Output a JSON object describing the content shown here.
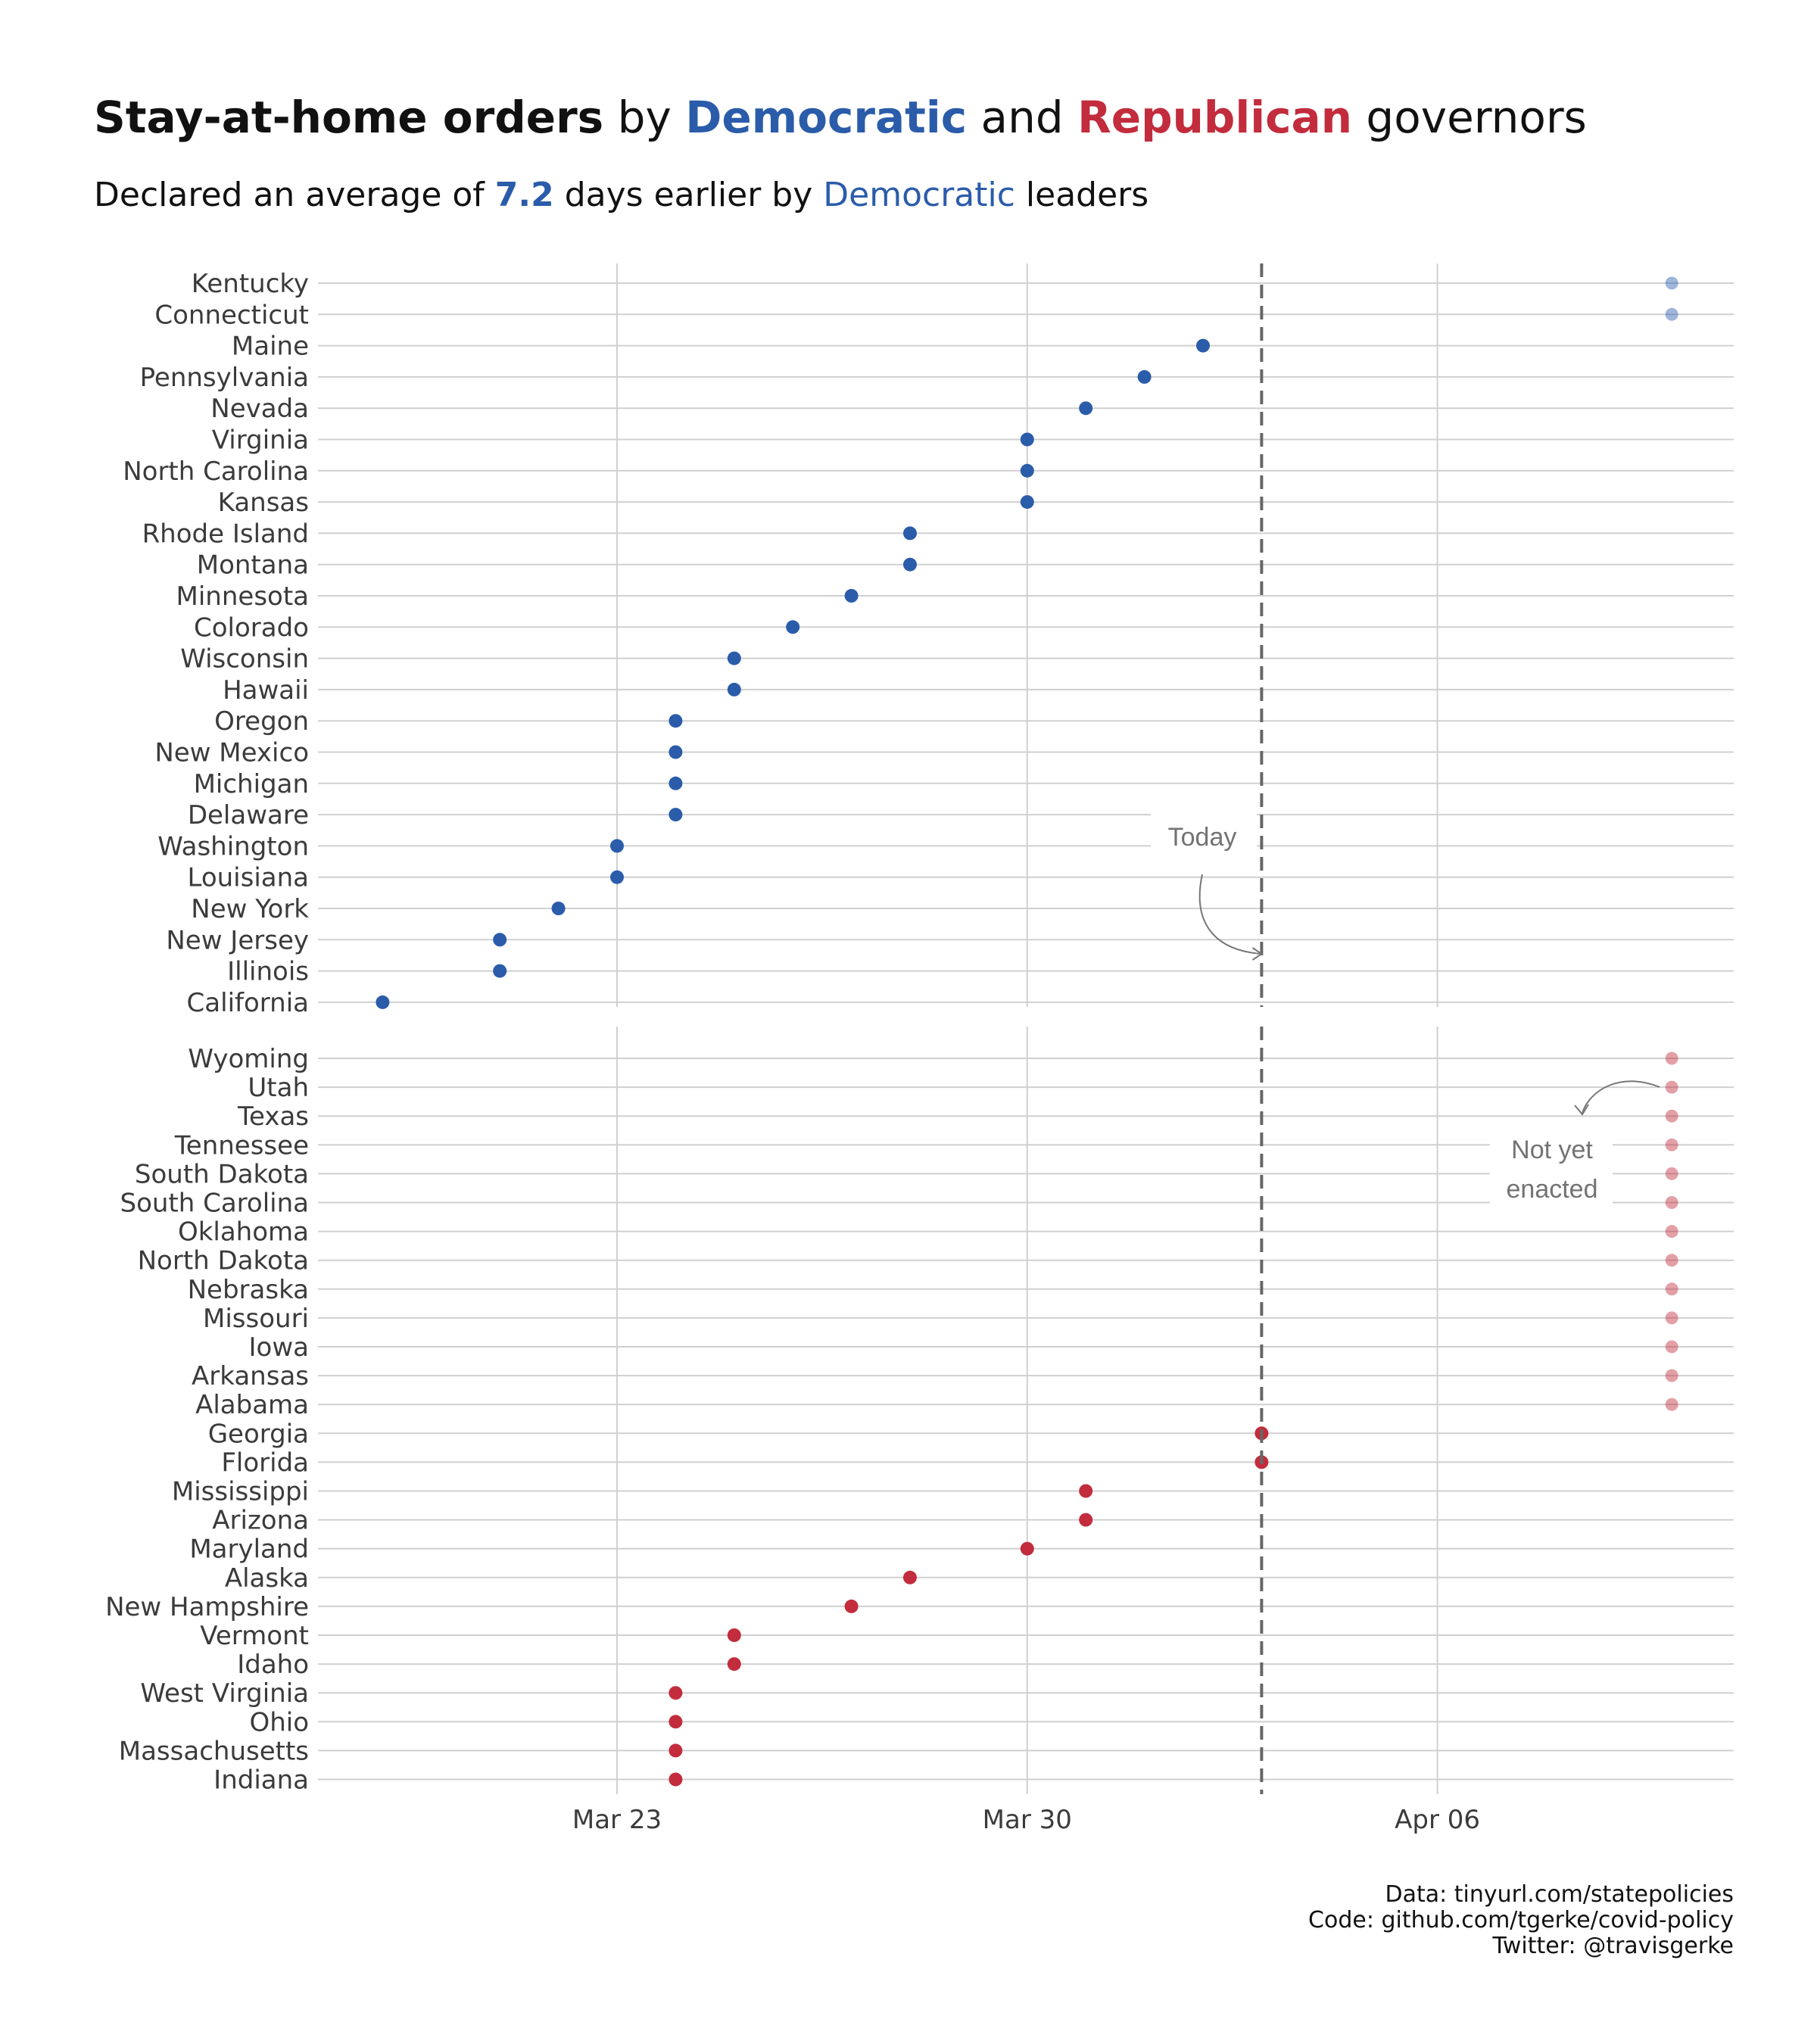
{
  "title_parts": {
    "bold_lead": "Stay-at-home orders",
    "by": " by ",
    "dem": "Democratic",
    "and": " and ",
    "rep": "Republican",
    "tail": " governors"
  },
  "subtitle_parts": {
    "lead": "Declared an average of ",
    "num": "7.2",
    "mid": " days earlier by ",
    "dem": "Democratic",
    "tail": " leaders"
  },
  "colors": {
    "dem": "#2a5caa",
    "rep": "#c22c3c",
    "grid": "#d0d0d0",
    "today_line": "#666666",
    "text": "#3b3b3b"
  },
  "chart_data": {
    "type": "scatter",
    "x_unit": "date (2020)",
    "x_ticks": [
      {
        "label": "Mar 23",
        "day": 23
      },
      {
        "label": "Mar 30",
        "day": 30
      },
      {
        "label": "Apr 06",
        "day": 37
      }
    ],
    "xlim_day": [
      17.9,
      42.2
    ],
    "today_day": 34,
    "not_yet_enacted_day": 41,
    "panels": [
      {
        "party": "Democratic",
        "color_key": "dem",
        "states": [
          {
            "state": "Kentucky",
            "day": null
          },
          {
            "state": "Connecticut",
            "day": null
          },
          {
            "state": "Maine",
            "day": 33
          },
          {
            "state": "Pennsylvania",
            "day": 32
          },
          {
            "state": "Nevada",
            "day": 31
          },
          {
            "state": "Virginia",
            "day": 30
          },
          {
            "state": "North Carolina",
            "day": 30
          },
          {
            "state": "Kansas",
            "day": 30
          },
          {
            "state": "Rhode Island",
            "day": 28
          },
          {
            "state": "Montana",
            "day": 28
          },
          {
            "state": "Minnesota",
            "day": 27
          },
          {
            "state": "Colorado",
            "day": 26
          },
          {
            "state": "Wisconsin",
            "day": 25
          },
          {
            "state": "Hawaii",
            "day": 25
          },
          {
            "state": "Oregon",
            "day": 24
          },
          {
            "state": "New Mexico",
            "day": 24
          },
          {
            "state": "Michigan",
            "day": 24
          },
          {
            "state": "Delaware",
            "day": 24
          },
          {
            "state": "Washington",
            "day": 23
          },
          {
            "state": "Louisiana",
            "day": 23
          },
          {
            "state": "New York",
            "day": 22
          },
          {
            "state": "New Jersey",
            "day": 21
          },
          {
            "state": "Illinois",
            "day": 21
          },
          {
            "state": "California",
            "day": 19
          }
        ]
      },
      {
        "party": "Republican",
        "color_key": "rep",
        "states": [
          {
            "state": "Wyoming",
            "day": null
          },
          {
            "state": "Utah",
            "day": null
          },
          {
            "state": "Texas",
            "day": null
          },
          {
            "state": "Tennessee",
            "day": null
          },
          {
            "state": "South Dakota",
            "day": null
          },
          {
            "state": "South Carolina",
            "day": null
          },
          {
            "state": "Oklahoma",
            "day": null
          },
          {
            "state": "North Dakota",
            "day": null
          },
          {
            "state": "Nebraska",
            "day": null
          },
          {
            "state": "Missouri",
            "day": null
          },
          {
            "state": "Iowa",
            "day": null
          },
          {
            "state": "Arkansas",
            "day": null
          },
          {
            "state": "Alabama",
            "day": null
          },
          {
            "state": "Georgia",
            "day": 34
          },
          {
            "state": "Florida",
            "day": 34
          },
          {
            "state": "Mississippi",
            "day": 31
          },
          {
            "state": "Arizona",
            "day": 31
          },
          {
            "state": "Maryland",
            "day": 30
          },
          {
            "state": "Alaska",
            "day": 28
          },
          {
            "state": "New Hampshire",
            "day": 27
          },
          {
            "state": "Vermont",
            "day": 25
          },
          {
            "state": "Idaho",
            "day": 25
          },
          {
            "state": "West Virginia",
            "day": 24
          },
          {
            "state": "Ohio",
            "day": 24
          },
          {
            "state": "Massachusetts",
            "day": 24
          },
          {
            "state": "Indiana",
            "day": 24
          }
        ]
      }
    ],
    "annotations": {
      "today": "Today",
      "not_yet_line1": "Not yet",
      "not_yet_line2": "enacted"
    }
  },
  "caption": [
    "Data: tinyurl.com/statepolicies",
    "Code: github.com/tgerke/covid-policy",
    "Twitter: @travisgerke"
  ]
}
